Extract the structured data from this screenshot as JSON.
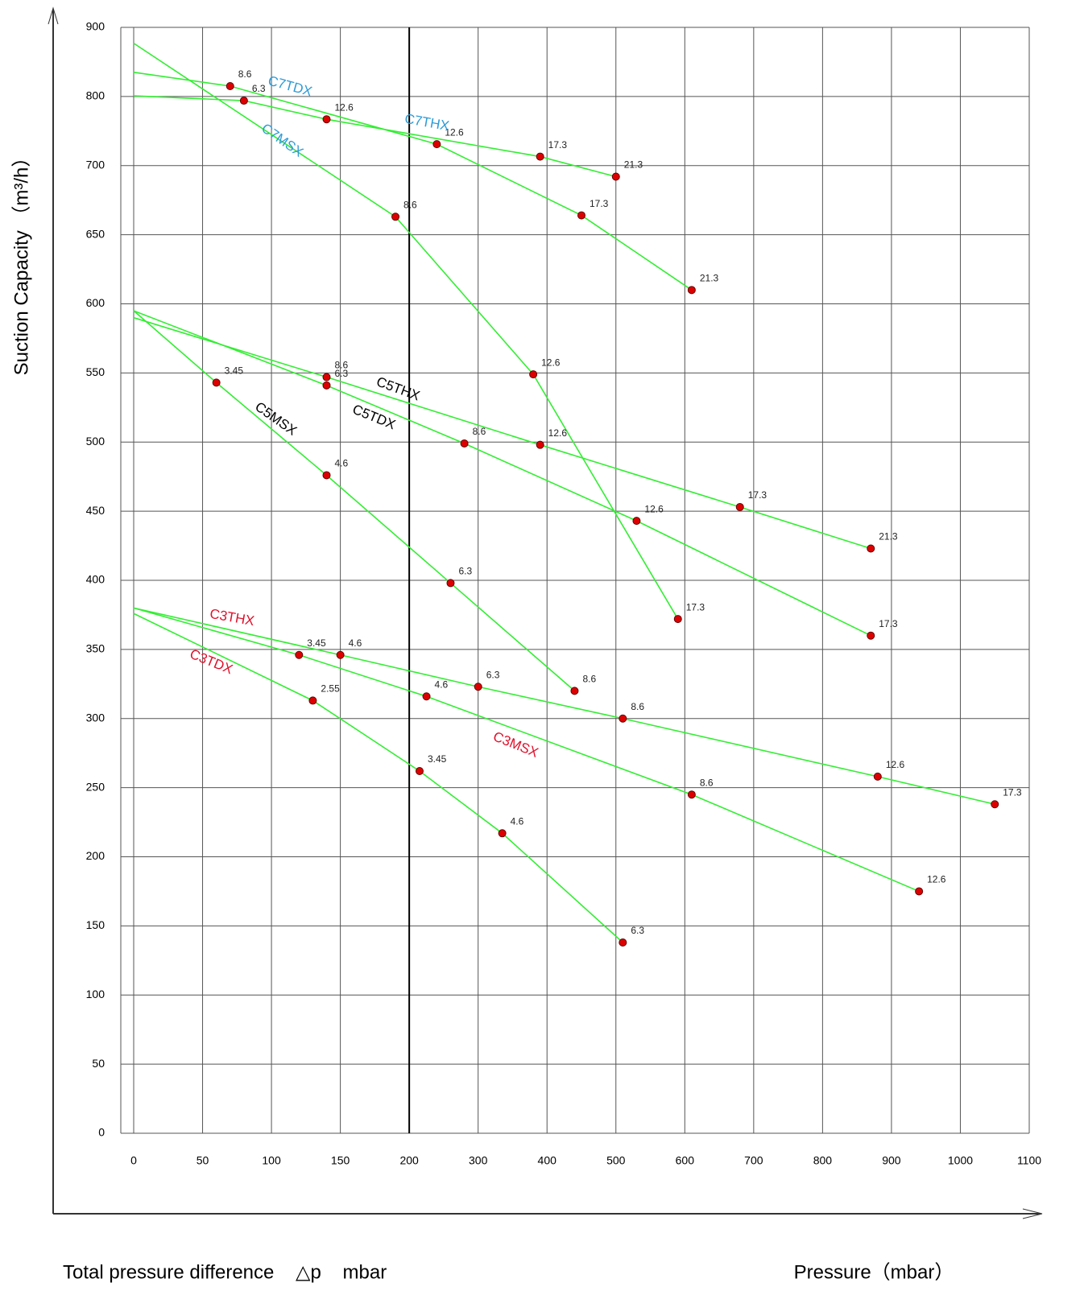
{
  "chart_data": {
    "type": "line",
    "y_label": "Suction Capacity （m³/h）",
    "x_label": "Total pressure difference    △p    mbar",
    "x_label_right": "Pressure（mbar）",
    "xlim": [
      0,
      1100
    ],
    "ylim": [
      0,
      900
    ],
    "xticks": [
      0,
      50,
      100,
      150,
      200,
      300,
      400,
      500,
      600,
      700,
      800,
      900,
      1000,
      1100
    ],
    "yticks": [
      0,
      50,
      100,
      150,
      200,
      250,
      300,
      350,
      400,
      450,
      500,
      550,
      600,
      650,
      700,
      800,
      900
    ],
    "grid": true,
    "line_color": "#33ee33",
    "marker_color": "#dd0000",
    "series": [
      {
        "name": "C7TDX",
        "color": "#2e9bd6",
        "x": [
          0,
          70,
          240,
          450,
          610
        ],
        "values": [
          835,
          815,
          731,
          664,
          610
        ],
        "point_labels": [
          null,
          "8.6",
          "12.6",
          "17.3",
          "21.3"
        ]
      },
      {
        "name": "C7THX",
        "color": "#2e9bd6",
        "x": [
          0,
          80,
          140,
          390,
          500
        ],
        "values": [
          801,
          794,
          767,
          713,
          692
        ],
        "point_labels": [
          null,
          "6.3",
          "12.6",
          "17.3",
          "21.3"
        ]
      },
      {
        "name": "C7MSX",
        "color": "#2e9bd6",
        "x": [
          0,
          190,
          380,
          590
        ],
        "values": [
          877,
          663,
          549,
          372
        ],
        "point_labels": [
          null,
          "8.6",
          "12.6",
          "17.3"
        ]
      },
      {
        "name": "C5THX",
        "color": "#000000",
        "x": [
          0,
          140,
          390,
          680,
          870
        ],
        "values": [
          590,
          547,
          498,
          453,
          423
        ],
        "point_labels": [
          null,
          "8.6",
          "12.6",
          "17.3",
          "21.3"
        ]
      },
      {
        "name": "C5TDX",
        "color": "#000000",
        "x": [
          0,
          140,
          280,
          530,
          870
        ],
        "values": [
          595,
          541,
          499,
          443,
          360
        ],
        "point_labels": [
          null,
          "6.3",
          "8.6",
          "12.6",
          "17.3"
        ]
      },
      {
        "name": "C5MSX",
        "color": "#000000",
        "x": [
          0,
          60,
          140,
          260,
          440
        ],
        "values": [
          595,
          543,
          476,
          398,
          320
        ],
        "point_labels": [
          null,
          "3.45",
          "4.6",
          "6.3",
          "8.6"
        ]
      },
      {
        "name": "C3THX",
        "color": "#e0102a",
        "x": [
          0,
          150,
          300,
          510,
          880,
          1050
        ],
        "values": [
          380,
          346,
          323,
          300,
          258,
          238
        ],
        "point_labels": [
          null,
          "4.6",
          "6.3",
          "8.6",
          "12.6",
          "17.3"
        ]
      },
      {
        "name": "C3TDX",
        "color": "#e0102a",
        "x": [
          0,
          120,
          225,
          610,
          940
        ],
        "values": [
          380,
          346,
          316,
          245,
          175
        ],
        "point_labels": [
          null,
          "3.45",
          "4.6",
          "8.6",
          "12.6"
        ]
      },
      {
        "name": "C3MSX",
        "color": "#e0102a",
        "x": [
          0,
          130,
          215,
          335,
          510
        ],
        "values": [
          376,
          313,
          262,
          217,
          138
        ],
        "point_labels": [
          null,
          "2.55",
          "3.45",
          "4.6",
          "6.3"
        ]
      }
    ]
  }
}
